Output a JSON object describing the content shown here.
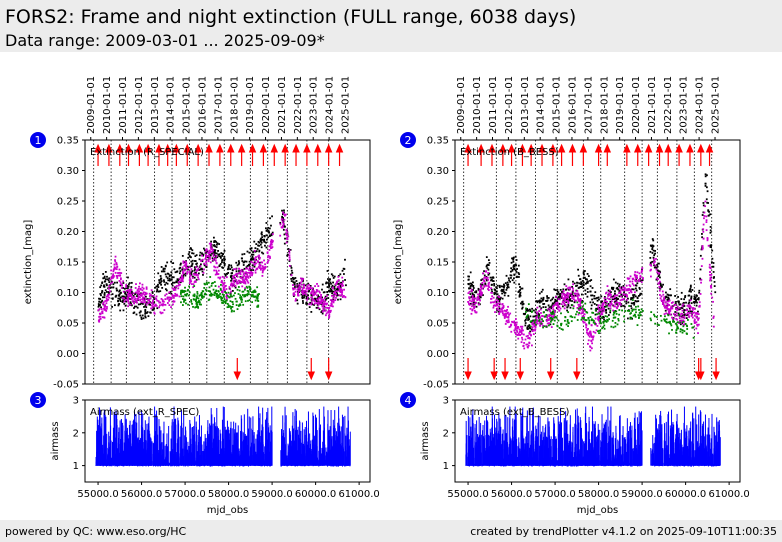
{
  "header": {
    "title": "FORS2: Frame and night extinction (FULL range, 6038 days)",
    "subtitle": "Data range: 2009-03-01 ... 2025-09-09*"
  },
  "footer": {
    "left": "powered by QC: www.eso.org/HC",
    "right": "created by trendPlotter v4.1.2 on 2025-09-10T11:00:35"
  },
  "chart_data": [
    {
      "type": "scatter",
      "panel_number": "1",
      "label": "Extinction (R_SPECIAL)",
      "ylabel": "extinction_[mag]",
      "ylim": [
        -0.05,
        0.35
      ],
      "yticks": [
        "-0.05",
        "0.00",
        "0.05",
        "0.10",
        "0.15",
        "0.20",
        "0.25",
        "0.30",
        "0.35"
      ],
      "xlim": [
        54700,
        61250
      ],
      "date_ticks": [
        "2009-01-01",
        "2010-01-01",
        "2011-01-01",
        "2012-01-01",
        "2013-01-01",
        "2014-01-01",
        "2015-01-01",
        "2016-01-01",
        "2017-01-01",
        "2018-01-01",
        "2019-01-01",
        "2020-01-01",
        "2021-01-01",
        "2022-01-01",
        "2023-01-01",
        "2024-01-01",
        "2025-01-01"
      ],
      "vlines_mjd": [
        54900,
        55300,
        55650,
        56300,
        56700,
        57100,
        57500,
        57900,
        58500,
        58900,
        59350,
        59800,
        60300
      ],
      "series": [
        {
          "color": "#000000",
          "x": [
            55000,
            55200,
            55450,
            55700,
            55900,
            56100,
            56300,
            56500,
            56700,
            56900,
            57100,
            57300,
            57500,
            57700,
            57900,
            58100,
            58300,
            58500,
            58700,
            58900,
            59250,
            59500,
            59700,
            59900,
            60100,
            60300,
            60500,
            60700
          ],
          "y": [
            0.08,
            0.12,
            0.09,
            0.1,
            0.08,
            0.07,
            0.09,
            0.13,
            0.12,
            0.13,
            0.15,
            0.14,
            0.16,
            0.17,
            0.15,
            0.12,
            0.14,
            0.15,
            0.17,
            0.2,
            0.22,
            0.11,
            0.1,
            0.09,
            0.08,
            0.11,
            0.1,
            0.13
          ]
        },
        {
          "color": "#cc00cc",
          "x": [
            55000,
            55200,
            55400,
            55600,
            55800,
            56000,
            56200,
            56400,
            56600,
            56800,
            57000,
            57200,
            57400,
            57600,
            57800,
            58000,
            58200,
            58400,
            58600,
            58800,
            59000,
            59300,
            59500,
            59700,
            59900,
            60100,
            60300,
            60500,
            60700
          ],
          "y": [
            0.06,
            0.08,
            0.15,
            0.1,
            0.09,
            0.1,
            0.09,
            0.08,
            0.09,
            0.1,
            0.14,
            0.12,
            0.15,
            0.17,
            0.12,
            0.1,
            0.13,
            0.12,
            0.15,
            0.14,
            0.18,
            0.22,
            0.1,
            0.11,
            0.1,
            0.09,
            0.07,
            0.11,
            0.1
          ]
        },
        {
          "color": "#008800",
          "x": [
            56900,
            57100,
            57300,
            57500,
            57700,
            57900,
            58100,
            58300,
            58500,
            58700
          ],
          "y": [
            0.09,
            0.1,
            0.08,
            0.11,
            0.1,
            0.09,
            0.08,
            0.09,
            0.1,
            0.09
          ]
        }
      ],
      "arrows_up_mjd": [
        55000,
        55250,
        55500,
        55700,
        55950,
        56150,
        56400,
        56600,
        56800,
        57050,
        57300,
        57550,
        57800,
        58050,
        58300,
        58550,
        58800,
        59050,
        59300,
        59550,
        59800,
        60050,
        60300,
        60550
      ],
      "arrows_down_mjd": [
        58200,
        59900,
        60300
      ]
    },
    {
      "type": "scatter",
      "panel_number": "2",
      "label": "Extinction (B_BESS)",
      "ylabel": "extinction_[mag]",
      "ylim": [
        -0.05,
        0.35
      ],
      "yticks": [
        "-0.05",
        "0.00",
        "0.05",
        "0.10",
        "0.15",
        "0.20",
        "0.25",
        "0.30",
        "0.35"
      ],
      "xlim": [
        54700,
        61250
      ],
      "date_ticks": [
        "2009-01-01",
        "2010-01-01",
        "2011-01-01",
        "2012-01-01",
        "2013-01-01",
        "2014-01-01",
        "2015-01-01",
        "2016-01-01",
        "2017-01-01",
        "2018-01-01",
        "2019-01-01",
        "2020-01-01",
        "2021-01-01",
        "2022-01-01",
        "2023-01-01",
        "2024-01-01",
        "2025-01-01"
      ],
      "vlines_mjd": [
        54900,
        55650,
        56100,
        56550,
        57050,
        57650,
        58050,
        58600,
        59000,
        59350,
        59800,
        60200,
        60600
      ],
      "series": [
        {
          "color": "#000000",
          "x": [
            55000,
            55200,
            55450,
            55700,
            55900,
            56100,
            56300,
            56500,
            56700,
            56900,
            57100,
            57300,
            57500,
            57700,
            57900,
            58100,
            58300,
            58500,
            58700,
            58900,
            59250,
            59500,
            59700,
            59900,
            60100,
            60300,
            60450,
            60700
          ],
          "y": [
            0.12,
            0.08,
            0.14,
            0.09,
            0.11,
            0.15,
            0.06,
            0.05,
            0.09,
            0.07,
            0.1,
            0.09,
            0.11,
            0.12,
            0.08,
            0.07,
            0.09,
            0.1,
            0.08,
            0.1,
            0.17,
            0.09,
            0.08,
            0.07,
            0.09,
            0.08,
            0.3,
            0.08
          ]
        },
        {
          "color": "#cc00cc",
          "x": [
            55000,
            55200,
            55400,
            55600,
            55800,
            56000,
            56200,
            56400,
            56600,
            56800,
            57000,
            57200,
            57400,
            57600,
            57800,
            58000,
            58200,
            58400,
            58600,
            58800,
            59000,
            59300,
            59500,
            59700,
            59900,
            60100,
            60300,
            60450,
            60650
          ],
          "y": [
            0.09,
            0.08,
            0.13,
            0.08,
            0.07,
            0.05,
            0.03,
            0.02,
            0.06,
            0.05,
            0.07,
            0.09,
            0.1,
            0.08,
            0.02,
            0.06,
            0.09,
            0.08,
            0.1,
            0.12,
            0.13,
            0.15,
            0.08,
            0.07,
            0.06,
            0.07,
            0.05,
            0.25,
            0.05
          ]
        },
        {
          "color": "#008800",
          "x": [
            56300,
            56600,
            56900,
            57200,
            57500,
            57800,
            58100,
            58400,
            58700,
            60200
          ],
          "y": [
            0.07,
            0.05,
            0.06,
            0.05,
            0.07,
            0.06,
            0.05,
            0.06,
            0.07,
            0.04
          ]
        }
      ],
      "arrows_up_mjd": [
        55000,
        55300,
        55550,
        55800,
        56000,
        56250,
        56450,
        56700,
        56950,
        57150,
        57400,
        57650,
        58000,
        58200,
        58650,
        58900,
        59150,
        59400,
        59600,
        59850,
        60100,
        60350,
        60550
      ],
      "arrows_down_mjd": [
        55000,
        55600,
        55850,
        56200,
        56900,
        57500,
        60300,
        60350,
        60700
      ]
    },
    {
      "type": "scatter",
      "panel_number": "3",
      "label": "Airmass (ext_R_SPEC)",
      "ylabel": "airmass",
      "xlabel": "mjd_obs",
      "ylim": [
        0.5,
        3
      ],
      "yticks": [
        "1",
        "2",
        "3"
      ],
      "xlim": [
        54700,
        61250
      ],
      "xticks": [
        "55000.0",
        "56000.0",
        "57000.0",
        "58000.0",
        "59000.0",
        "60000.0",
        "61000.0"
      ],
      "series": [
        {
          "color": "#0000ff",
          "x_ranges": [
            [
              54950,
              59000
            ],
            [
              59200,
              60800
            ]
          ],
          "y_range": [
            1.0,
            2.8
          ]
        }
      ]
    },
    {
      "type": "scatter",
      "panel_number": "4",
      "label": "Airmass (ext_B_BESS)",
      "ylabel": "airmass",
      "xlabel": "mjd_obs",
      "ylim": [
        0.5,
        3
      ],
      "yticks": [
        "1",
        "2",
        "3"
      ],
      "xlim": [
        54700,
        61250
      ],
      "xticks": [
        "55000.0",
        "56000.0",
        "57000.0",
        "58000.0",
        "59000.0",
        "60000.0",
        "61000.0"
      ],
      "series": [
        {
          "color": "#0000ff",
          "x_ranges": [
            [
              54950,
              59000
            ],
            [
              59200,
              60800
            ]
          ],
          "y_range": [
            1.0,
            2.8
          ]
        }
      ]
    }
  ]
}
